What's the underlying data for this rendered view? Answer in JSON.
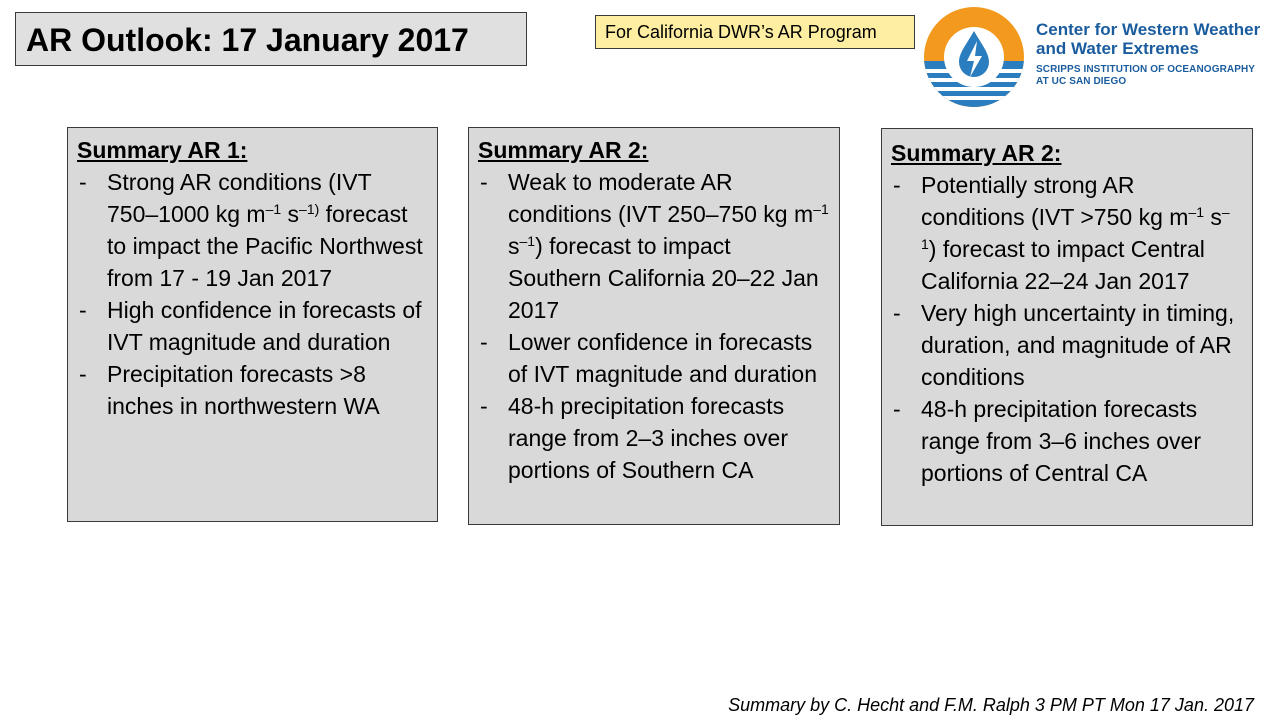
{
  "header": {
    "title": "AR Outlook: 17 January 2017",
    "program": "For California DWR’s AR Program"
  },
  "logo": {
    "icon": "water-drop-icon",
    "name_line1": "Center for Western Weather",
    "name_line2": "and Water Extremes",
    "sub_line1": "SCRIPPS INSTITUTION OF OCEANOGRAPHY",
    "sub_line2": "AT UC SAN DIEGO",
    "colors": {
      "orange": "#f39a1e",
      "blue": "#2a7dbf",
      "dark_blue": "#1a5c9e"
    }
  },
  "summaries": [
    {
      "heading": "Summary AR 1:",
      "bullets": [
        {
          "pre": "Strong AR conditions (IVT 750–1000 kg m",
          "sup1": "–1",
          "mid": " s",
          "sup2": "–1)",
          "post": " forecast to impact the Pacific Northwest from 17 -  19 Jan 2017"
        },
        {
          "text": "High confidence in forecasts of IVT magnitude and duration"
        },
        {
          "text": "Precipitation forecasts >8 inches in northwestern WA"
        }
      ]
    },
    {
      "heading": "Summary AR 2:",
      "bullets": [
        {
          "pre": "Weak to moderate AR conditions (IVT 250–750 kg m",
          "sup1": "–1",
          "mid": " s",
          "sup2": "–1",
          "post": ") forecast to impact Southern California  20–22 Jan 2017"
        },
        {
          "text": "Lower confidence in forecasts of IVT magnitude and duration"
        },
        {
          "text": "48-h precipitation forecasts range from 2–3 inches over portions of Southern CA"
        }
      ]
    },
    {
      "heading": "Summary AR 2:",
      "bullets": [
        {
          "pre": "Potentially strong AR conditions (IVT >750 kg m",
          "sup1": "–1",
          "mid": " s",
          "sup2": "–1",
          "post": ") forecast to impact Central California  22–24  Jan 2017"
        },
        {
          "text": "Very high uncertainty in timing, duration, and magnitude of AR conditions"
        },
        {
          "text": "48-h precipitation forecasts range from 3–6 inches over portions of Central CA"
        }
      ]
    }
  ],
  "footer": "Summary by C. Hecht and F.M. Ralph 3 PM PT Mon 17 Jan. 2017"
}
